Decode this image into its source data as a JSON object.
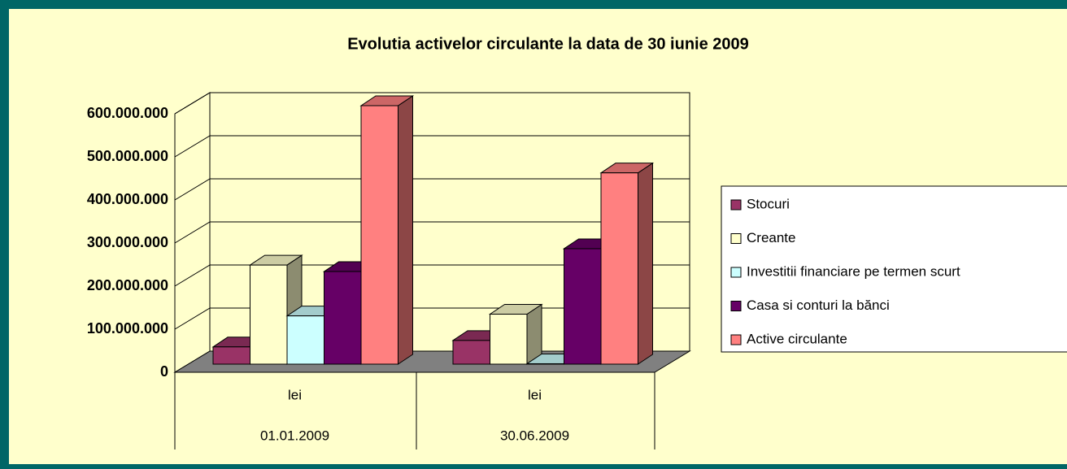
{
  "chart_data": {
    "type": "bar3d",
    "title": "Evolutia activelor circulante la data de 30 iunie 2009",
    "categories": [
      "01.01.2009",
      "30.06.2009"
    ],
    "category_units": [
      "lei",
      "lei"
    ],
    "ylim": [
      0,
      600000000
    ],
    "yticks": [
      0,
      {
        "value": 100000000,
        "label": "100.000.000"
      },
      {
        "value": 200000000,
        "label": "200.000.000"
      },
      {
        "value": 300000000,
        "label": "300.000.000"
      },
      {
        "value": 400000000,
        "label": "400.000.000"
      },
      {
        "value": 500000000,
        "label": "500.000.000"
      },
      {
        "value": 600000000,
        "label": "600.000.000"
      }
    ],
    "grid": true,
    "legend": "right",
    "series": [
      {
        "name": "Stocuri",
        "color": "#993366",
        "values": [
          40000000,
          55000000
        ]
      },
      {
        "name": "Creante",
        "color": "#FFFFCC",
        "values": [
          230000000,
          116000000
        ]
      },
      {
        "name": "Investitii financiare pe termen scurt",
        "color": "#CCFFFF",
        "values": [
          112000000,
          1000000
        ]
      },
      {
        "name": "Casa si conturi la bănci",
        "color": "#660066",
        "values": [
          215000000,
          268000000
        ]
      },
      {
        "name": "Active circulante",
        "color": "#FF8080",
        "values": [
          600000000,
          444000000
        ]
      }
    ]
  }
}
